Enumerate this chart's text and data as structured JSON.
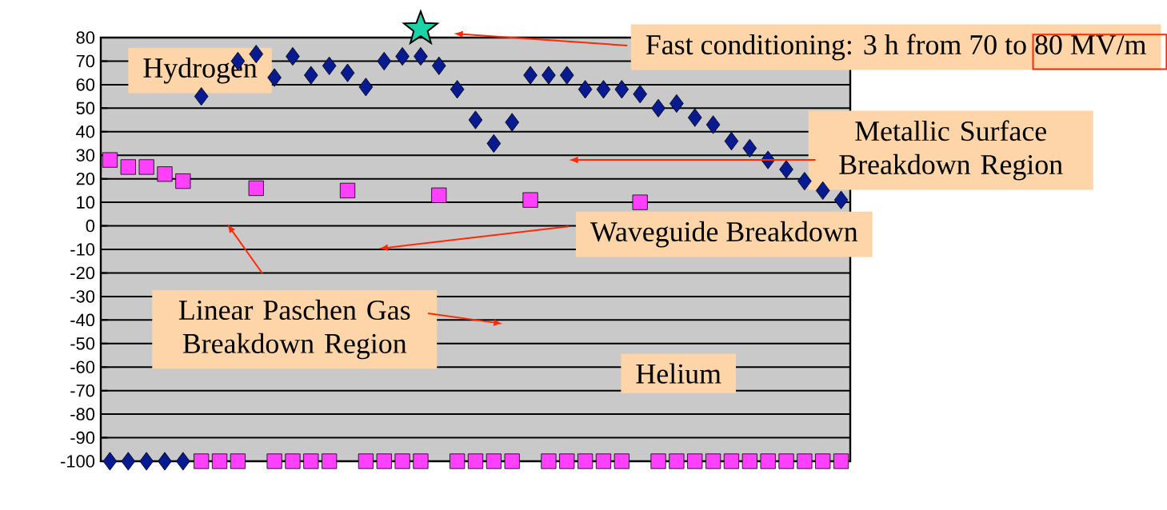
{
  "chart_data": {
    "type": "scatter",
    "categories": [
      null,
      null,
      null,
      null,
      null,
      null,
      null,
      null,
      null,
      null,
      null,
      null,
      null,
      null,
      null,
      null,
      null,
      null,
      null,
      null,
      null,
      null,
      null,
      null,
      null,
      null,
      null,
      null,
      null,
      null,
      null,
      null,
      null,
      null,
      null,
      null,
      null,
      null,
      null,
      null,
      null
    ],
    "series": [
      {
        "color": "#071A8F",
        "marker": "diamond",
        "values": [
          -100,
          -100,
          -100,
          -100,
          -100,
          55,
          null,
          70,
          73,
          63,
          72,
          64,
          68,
          65,
          59,
          70,
          72,
          72,
          68,
          58,
          45,
          35,
          44,
          64,
          64,
          64,
          58,
          58,
          58,
          56,
          50,
          52,
          46,
          43,
          36,
          33,
          28,
          24,
          19,
          15,
          11
        ]
      },
      {
        "color": "#FF40FF",
        "marker": "square",
        "values": [
          28,
          25,
          25,
          22,
          19,
          -100,
          -100,
          -100,
          16,
          -100,
          -100,
          -100,
          -100,
          15,
          -100,
          -100,
          -100,
          -100,
          13,
          -100,
          -100,
          -100,
          -100,
          11,
          -100,
          -100,
          -100,
          -100,
          -100,
          10,
          -100,
          -100,
          -100,
          -100,
          -100,
          -100,
          -100,
          -100,
          -100,
          -100,
          -100
        ]
      }
    ],
    "ylim": [
      -100,
      80
    ],
    "yticks": [
      -100,
      -90,
      -80,
      -70,
      -60,
      -50,
      -40,
      -30,
      -20,
      -10,
      0,
      10,
      20,
      30,
      40,
      50,
      60,
      70,
      80
    ],
    "grid": "y",
    "annotations": [
      "Hydrogen",
      "Fast conditioning: 3 h from 70 to 80 MV/m",
      "Metallic Surface Breakdown Region",
      "Waveguide Breakdown",
      "Linear Paschen Gas Breakdown Region",
      "Helium"
    ]
  }
}
